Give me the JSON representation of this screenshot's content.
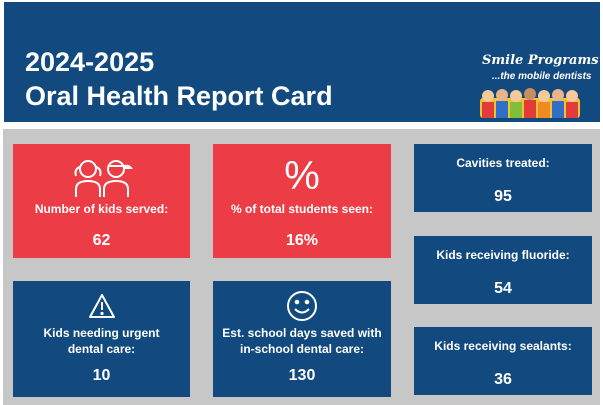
{
  "header": {
    "title_line1": "2024-2025",
    "title_line2": "Oral Health Report Card",
    "background": "#124a80"
  },
  "logo": {
    "name": "Smile Programs",
    "tagline": "...the mobile dentists"
  },
  "colors": {
    "red_tile": "#ec3d47",
    "blue_tile": "#124a80",
    "panel": "#c7c7c7"
  },
  "stats": {
    "kids_served": {
      "label": "Number of kids served:",
      "value": "62",
      "icon": "kids-icon"
    },
    "percent_seen": {
      "label": "% of total students seen:",
      "value": "16%",
      "icon": "%"
    },
    "urgent_care": {
      "label_line1": "Kids needing urgent",
      "label_line2": "dental care:",
      "value": "10",
      "icon": "warning-icon"
    },
    "school_days": {
      "label_line1": "Est. school days saved with",
      "label_line2": "in-school dental care:",
      "value": "130",
      "icon": "smiley-icon"
    },
    "cavities": {
      "label": "Cavities treated:",
      "value": "95"
    },
    "fluoride": {
      "label": "Kids receiving fluoride:",
      "value": "54"
    },
    "sealants": {
      "label": "Kids receiving sealants:",
      "value": "36"
    }
  }
}
